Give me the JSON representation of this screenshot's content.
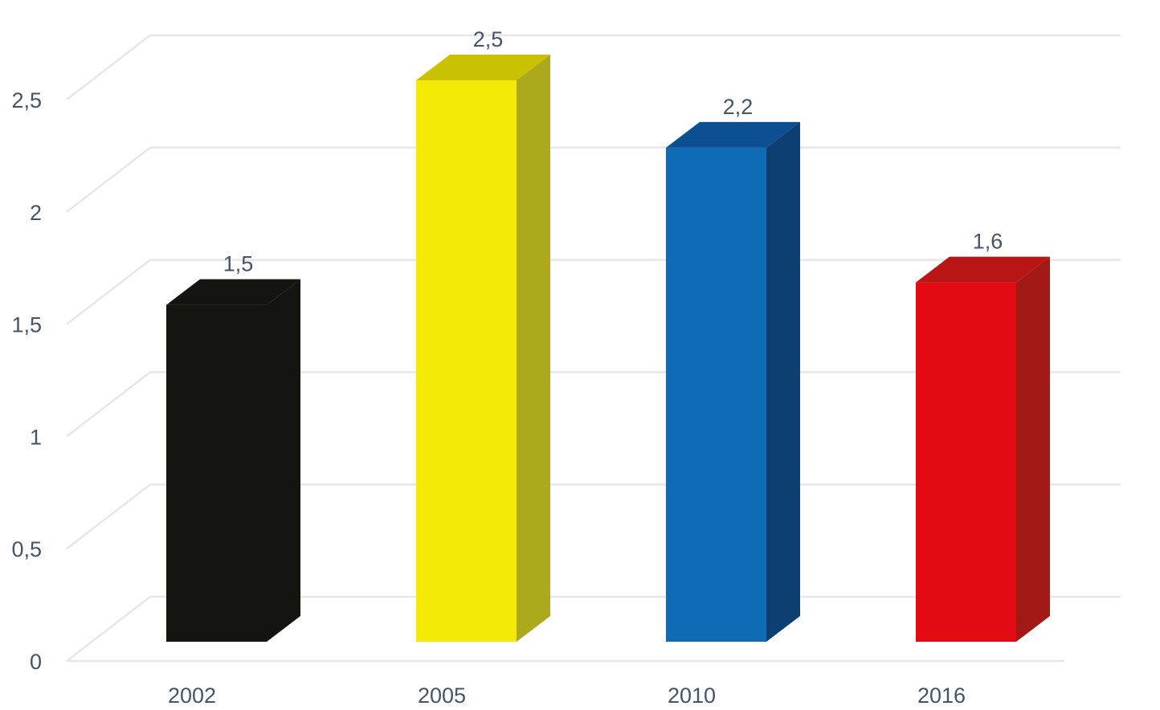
{
  "chart_data": {
    "type": "bar",
    "style": "3d-column",
    "title": "",
    "xlabel": "",
    "ylabel": "",
    "categories": [
      "2002",
      "2005",
      "2010",
      "2016"
    ],
    "values": [
      1.5,
      2.5,
      2.2,
      1.6
    ],
    "data_labels": [
      "1,5",
      "2,5",
      "2,2",
      "1,6"
    ],
    "ylim": [
      0,
      2.5
    ],
    "yticks": [
      0,
      0.5,
      1,
      1.5,
      2,
      2.5
    ],
    "ytick_labels": [
      "0",
      "0,5",
      "1",
      "1,5",
      "2",
      "2,5"
    ],
    "grid": true,
    "legend": "none",
    "colors": [
      {
        "front": "#14150f",
        "side": "#14150f",
        "top": "#14150f"
      },
      {
        "front": "#f5e906",
        "side": "#aca91d",
        "top": "#c9c200"
      },
      {
        "front": "#0f6bb3",
        "side": "#0d3f73",
        "top": "#0c4f93"
      },
      {
        "front": "#e30a14",
        "side": "#a31915",
        "top": "#b81515"
      }
    ],
    "grid_color": "#e6e6ec"
  }
}
